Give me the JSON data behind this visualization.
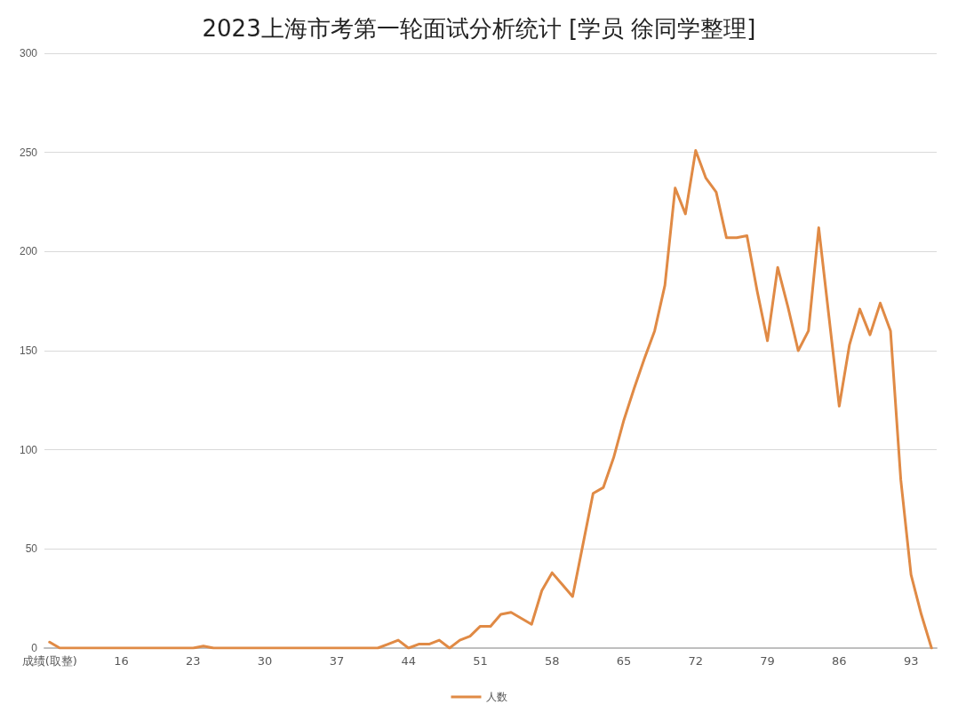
{
  "chart_data": {
    "type": "line",
    "title": "2023上海市考第一轮面试分析统计 [学员 徐同学整理]",
    "categories": [
      "成绩(取整)",
      null,
      null,
      null,
      null,
      null,
      null,
      "16",
      null,
      null,
      null,
      null,
      null,
      null,
      "23",
      null,
      null,
      null,
      null,
      null,
      null,
      "30",
      null,
      null,
      null,
      null,
      null,
      null,
      "37",
      null,
      null,
      null,
      null,
      null,
      null,
      "44",
      null,
      null,
      null,
      null,
      null,
      null,
      "51",
      null,
      null,
      null,
      null,
      null,
      null,
      "58",
      null,
      null,
      null,
      null,
      null,
      null,
      "65",
      null,
      null,
      null,
      null,
      null,
      null,
      "72",
      null,
      null,
      null,
      null,
      null,
      null,
      "79",
      null,
      null,
      null,
      null,
      null,
      null,
      "86",
      null,
      null,
      null,
      null,
      null,
      null,
      "93",
      null,
      null
    ],
    "series": [
      {
        "name": "人数",
        "color": "#e08a45",
        "values": [
          3,
          0,
          0,
          0,
          0,
          0,
          0,
          0,
          0,
          0,
          0,
          0,
          0,
          0,
          0,
          1,
          0,
          0,
          0,
          0,
          0,
          0,
          0,
          0,
          0,
          0,
          0,
          0,
          0,
          0,
          0,
          0,
          0,
          2,
          4,
          0,
          2,
          2,
          4,
          0,
          4,
          6,
          11,
          11,
          17,
          18,
          15,
          12,
          29,
          38,
          32,
          26,
          52,
          78,
          81,
          96,
          115,
          131,
          146,
          160,
          183,
          232,
          219,
          251,
          237,
          230,
          207,
          207,
          208,
          180,
          155,
          192,
          172,
          150,
          160,
          212,
          167,
          122,
          153,
          171,
          158,
          174,
          160,
          85,
          37,
          17,
          0
        ]
      }
    ],
    "ylim": [
      0,
      300
    ],
    "yticks": [
      0,
      50,
      100,
      150,
      200,
      250,
      300
    ],
    "grid": "y",
    "legend": "bottom",
    "marker": "none",
    "line_style": "solid"
  }
}
